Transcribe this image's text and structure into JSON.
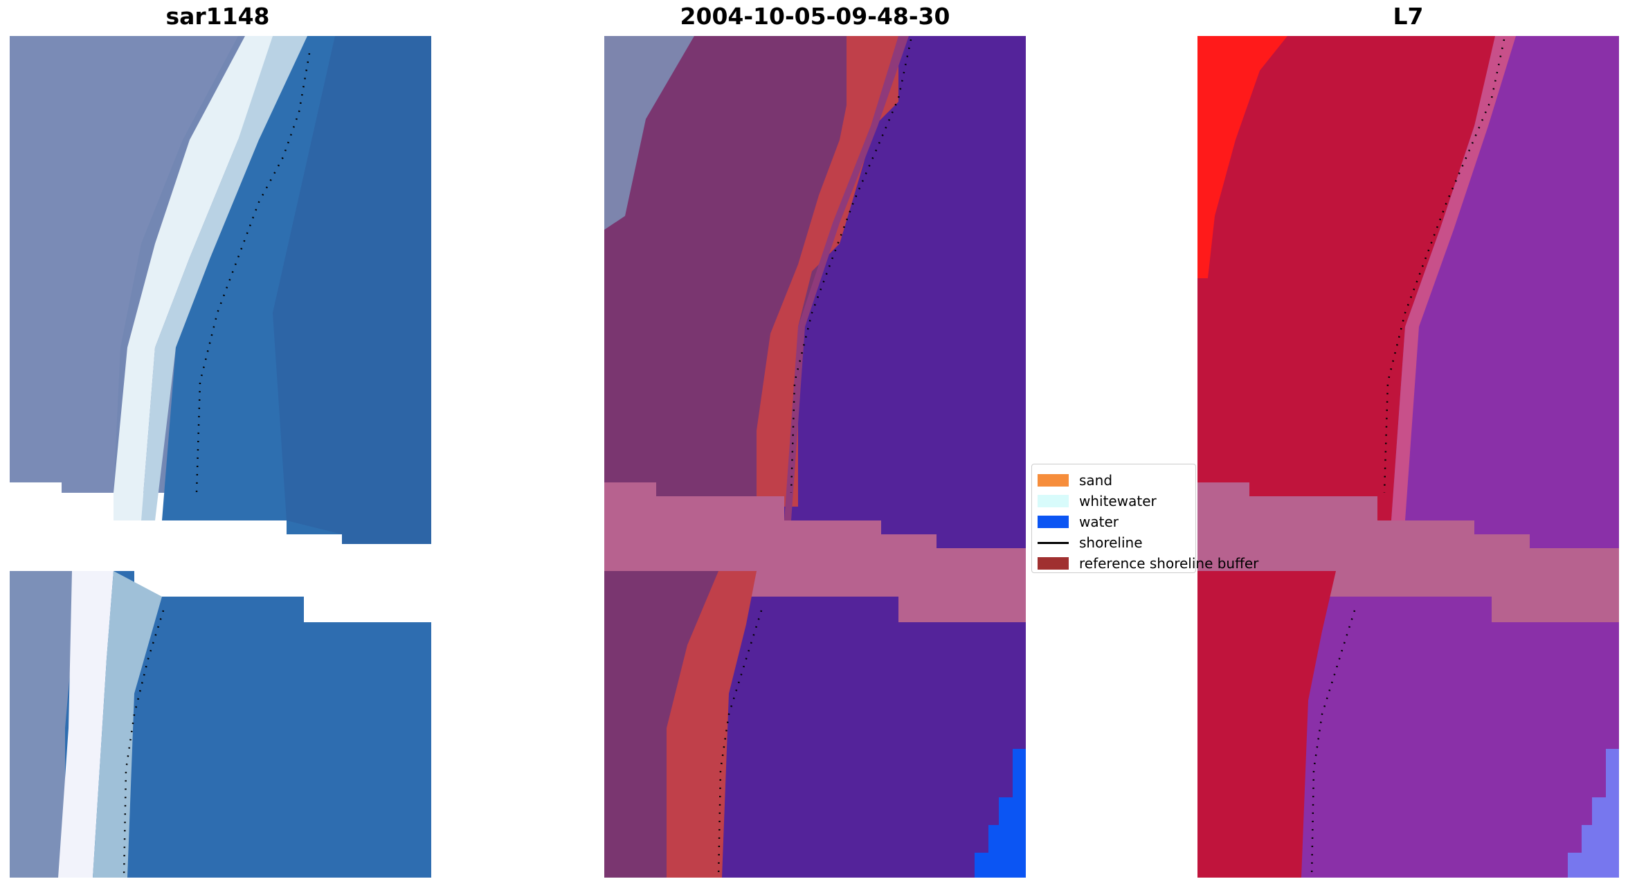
{
  "titles": {
    "left": "sar1148",
    "center": "2004-10-05-09-48-30",
    "right": "L7"
  },
  "legend": {
    "items": [
      {
        "label": "sand",
        "color": "#f68d3b",
        "kind": "patch"
      },
      {
        "label": "whitewater",
        "color": "#d8fbfb",
        "kind": "patch"
      },
      {
        "label": "water",
        "color": "#0b55f3",
        "kind": "patch"
      },
      {
        "label": "shoreline",
        "color": "#000000",
        "kind": "line"
      },
      {
        "label": "reference shoreline buffer",
        "color": "#a03030",
        "kind": "patch"
      }
    ]
  },
  "colors": {
    "land_rgb": "#7d8fb8",
    "surf_rgb": "#eef6fb",
    "water_rgb": "#2f6fae",
    "classified_land": "#7a3670",
    "classified_water": "#54239a",
    "classified_buffer_hit": "#c0404a",
    "mndwi_land": "#c0143c",
    "mndwi_water": "#8a30a8",
    "mndwi_high": "#ff1a1a",
    "cloud_mask": "#b7628f",
    "shoreline": "#000000"
  }
}
